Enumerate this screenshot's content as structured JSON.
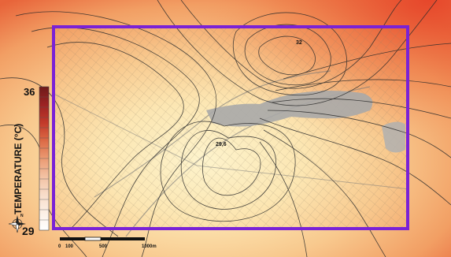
{
  "legend": {
    "title": "TEMPERATURE (°C)",
    "max_label": "36",
    "min_label": "29",
    "ramp_colors": [
      "#6e1a1a",
      "#9c2323",
      "#c23a2a",
      "#dc6a45",
      "#eb9a72",
      "#f3c1a2",
      "#f8dcc8",
      "#fcefe4",
      "#ffffff"
    ]
  },
  "north_arrow": {
    "label": "N"
  },
  "scale_bar": {
    "tick_labels": [
      "0",
      "100",
      "500",
      "1000m"
    ]
  },
  "contour_labels": [
    {
      "text": "32"
    },
    {
      "text": "29,6"
    }
  ],
  "colors": {
    "study_area_outline": "#7a22d6",
    "hot": "#e8502a",
    "cool": "#fdf0c8",
    "water": "#a9a9a9",
    "contour": "#2a2a2a"
  },
  "icons": {
    "north_arrow": "compass-rose-icon",
    "scale": "scale-bar-icon"
  }
}
